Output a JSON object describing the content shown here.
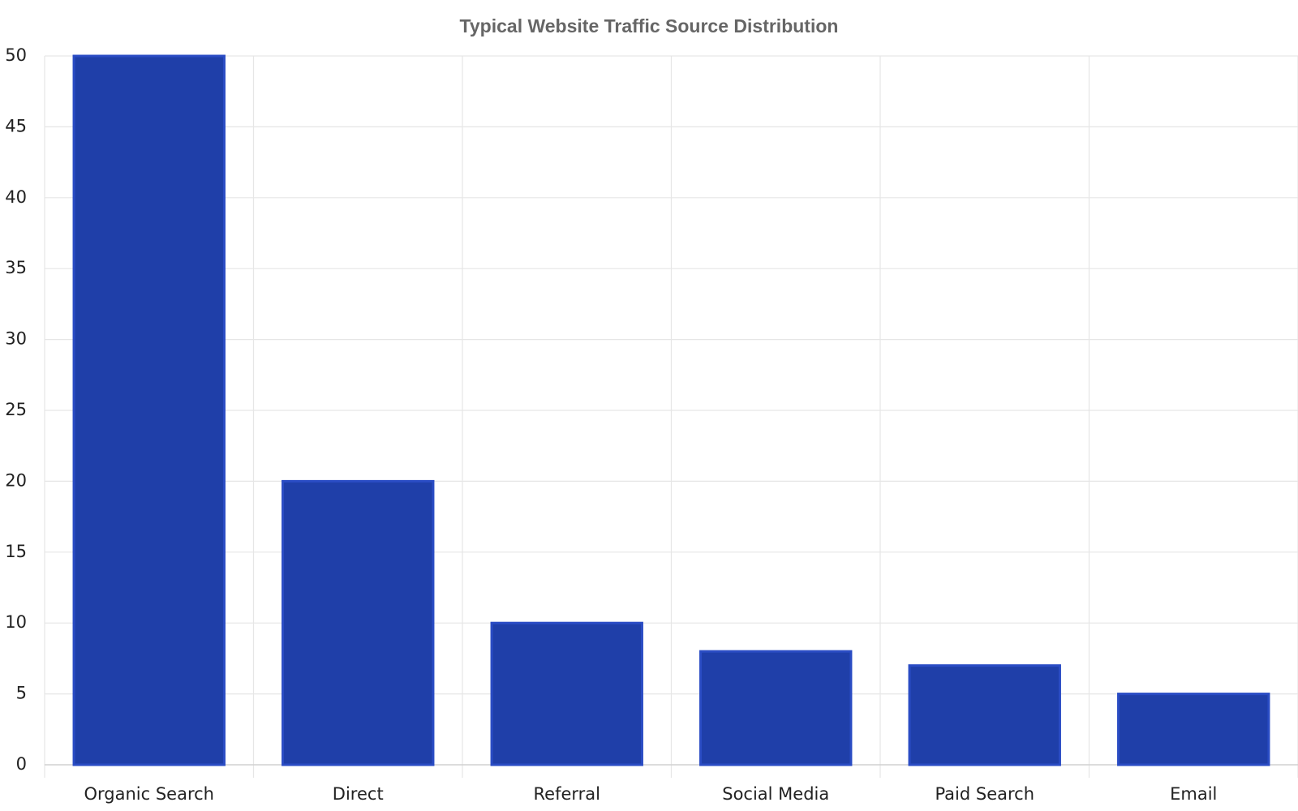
{
  "chart_data": {
    "type": "bar",
    "title": "Typical Website Traffic Source Distribution",
    "categories": [
      "Organic Search",
      "Direct",
      "Referral",
      "Social Media",
      "Paid Search",
      "Email"
    ],
    "values": [
      50,
      20,
      10,
      8,
      7,
      5
    ],
    "color": "#1f3fa9",
    "ylim": [
      0,
      50
    ],
    "yticks": [
      0,
      5,
      10,
      15,
      20,
      25,
      30,
      35,
      40,
      45,
      50
    ],
    "grid": true
  }
}
